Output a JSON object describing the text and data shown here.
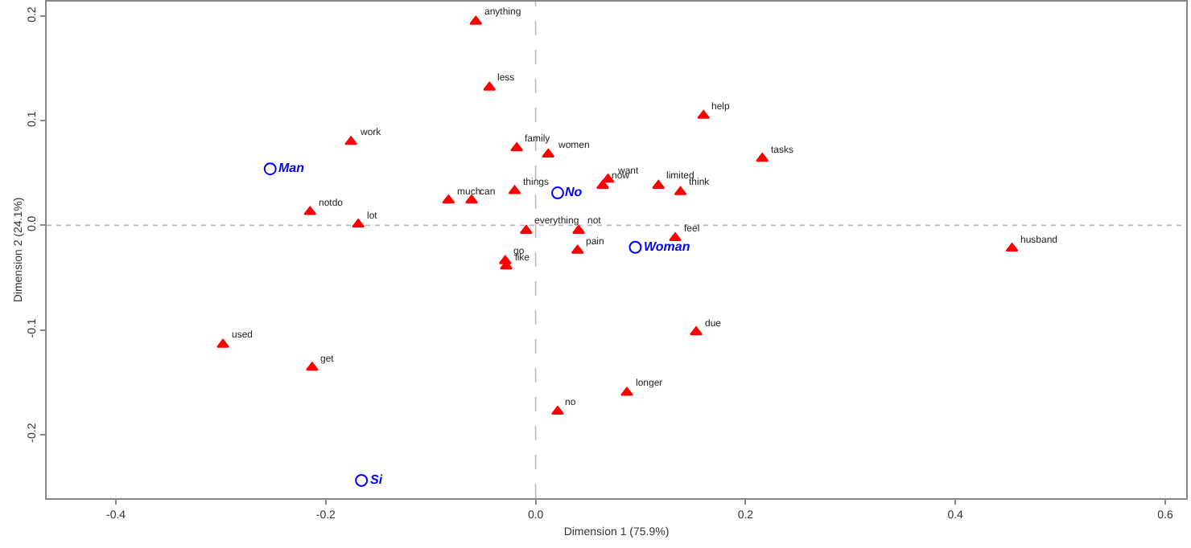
{
  "chart_data": {
    "type": "scatter",
    "xlabel": "Dimension 1 (75.9%)",
    "ylabel": "Dimension 2 (24.1%)",
    "xlim": [
      -0.466,
      0.62
    ],
    "ylim": [
      -0.261,
      0.214
    ],
    "xticks": [
      -0.4,
      -0.2,
      {
        "value": 0,
        "label": "0.0"
      },
      0.2,
      0.4,
      0.6
    ],
    "yticks": [
      -0.2,
      -0.1,
      {
        "value": 0,
        "label": "0.0"
      },
      0.1,
      0.2
    ],
    "grid": false,
    "ref_lines": [
      {
        "axis": "x",
        "value": 0,
        "color": "#bbbbbb",
        "line_style": "dashed"
      },
      {
        "axis": "y",
        "value": 0,
        "color": "#bbbbbb",
        "line_style": "dotted"
      }
    ],
    "series": [
      {
        "color": "#ff0000",
        "marker": "triangle",
        "x": [
          -0.057,
          -0.044,
          -0.176,
          -0.018,
          0.012,
          0.16,
          0.216,
          0.069,
          0.064,
          0.117,
          0.138,
          -0.02,
          -0.083,
          -0.061,
          -0.215,
          -0.169,
          -0.009,
          0.041,
          0.04,
          -0.029,
          -0.028,
          0.133,
          0.454,
          -0.298,
          -0.213,
          0.021,
          0.153,
          0.087
        ],
        "values": [
          0.195,
          0.132,
          0.08,
          0.074,
          0.068,
          0.105,
          0.064,
          0.044,
          0.038,
          0.038,
          0.032,
          0.033,
          0.024,
          0.024,
          0.013,
          0.001,
          -0.005,
          -0.005,
          -0.024,
          -0.034,
          -0.039,
          -0.012,
          -0.022,
          -0.114,
          -0.136,
          -0.178,
          -0.102,
          -0.16
        ]
      },
      {
        "color": "#0000ff",
        "marker": "circle",
        "x": [
          -0.253,
          0.021,
          0.095,
          -0.166
        ],
        "values": [
          0.054,
          0.031,
          -0.021,
          -0.244
        ]
      }
    ],
    "annotations": [
      {
        "text": "anything",
        "x": -0.057,
        "y": 0.195
      },
      {
        "text": "less",
        "x": -0.044,
        "y": 0.132
      },
      {
        "text": "work",
        "x": -0.176,
        "y": 0.08
      },
      {
        "text": "family",
        "x": -0.018,
        "y": 0.074
      },
      {
        "text": "women",
        "x": 0.012,
        "y": 0.068
      },
      {
        "text": "help",
        "x": 0.16,
        "y": 0.105
      },
      {
        "text": "tasks",
        "x": 0.216,
        "y": 0.064
      },
      {
        "text": "want",
        "x": 0.069,
        "y": 0.044
      },
      {
        "text": "now",
        "x": 0.064,
        "y": 0.038
      },
      {
        "text": "limited",
        "x": 0.117,
        "y": 0.038
      },
      {
        "text": "think",
        "x": 0.138,
        "y": 0.032
      },
      {
        "text": "things",
        "x": -0.02,
        "y": 0.033
      },
      {
        "text": "much",
        "x": -0.083,
        "y": 0.024
      },
      {
        "text": "can",
        "x": -0.061,
        "y": 0.024
      },
      {
        "text": "notdo",
        "x": -0.215,
        "y": 0.013
      },
      {
        "text": "lot",
        "x": -0.169,
        "y": 0.001
      },
      {
        "text": "everything",
        "x": -0.009,
        "y": -0.005
      },
      {
        "text": "not",
        "x": 0.041,
        "y": -0.005
      },
      {
        "text": "pain",
        "x": 0.04,
        "y": -0.024
      },
      {
        "text": "go",
        "x": -0.029,
        "y": -0.034
      },
      {
        "text": "like",
        "x": -0.028,
        "y": -0.039
      },
      {
        "text": "feel",
        "x": 0.133,
        "y": -0.012
      },
      {
        "text": "husband",
        "x": 0.454,
        "y": -0.022
      },
      {
        "text": "used",
        "x": -0.298,
        "y": -0.114
      },
      {
        "text": "get",
        "x": -0.213,
        "y": -0.136
      },
      {
        "text": "no",
        "x": 0.021,
        "y": -0.178
      },
      {
        "text": "due",
        "x": 0.153,
        "y": -0.102
      },
      {
        "text": "longer",
        "x": 0.087,
        "y": -0.16
      },
      {
        "text": "Man",
        "x": -0.253,
        "y": 0.054
      },
      {
        "text": "No",
        "x": 0.021,
        "y": 0.031
      },
      {
        "text": "Woman",
        "x": 0.095,
        "y": -0.021
      },
      {
        "text": "Si",
        "x": -0.166,
        "y": -0.244
      }
    ]
  }
}
